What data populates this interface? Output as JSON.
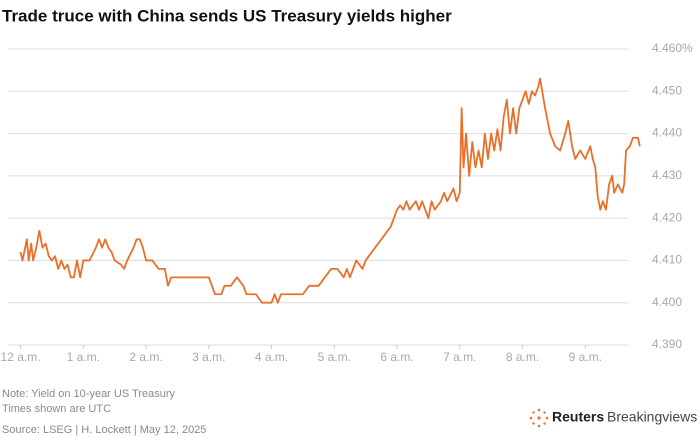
{
  "chart_data": {
    "type": "line",
    "title": "Trade truce with China sends US Treasury yields higher",
    "notes": [
      "Note: Yield on 10-year US Treasury",
      "Times shown are UTC",
      "Source: LSEG | H. Lockett | May 12, 2025"
    ],
    "brand": [
      "Reuters",
      "Breakingviews"
    ],
    "xlim": [
      -0.2,
      10.0
    ],
    "ylim": [
      4.39,
      4.46
    ],
    "xticks": [
      {
        "value": 0,
        "label": "12 a.m."
      },
      {
        "value": 1,
        "label": "1 a.m."
      },
      {
        "value": 2,
        "label": "2 a.m."
      },
      {
        "value": 3,
        "label": "3 a.m."
      },
      {
        "value": 4,
        "label": "4 a.m."
      },
      {
        "value": 5,
        "label": "5 a.m."
      },
      {
        "value": 6,
        "label": "6 a.m."
      },
      {
        "value": 7,
        "label": "7 a.m."
      },
      {
        "value": 8,
        "label": "8 a.m."
      },
      {
        "value": 9,
        "label": "9 a.m."
      }
    ],
    "yticks": [
      {
        "value": 4.39,
        "label": "4.390"
      },
      {
        "value": 4.4,
        "label": "4.400"
      },
      {
        "value": 4.41,
        "label": "4.410"
      },
      {
        "value": 4.42,
        "label": "4.420"
      },
      {
        "value": 4.43,
        "label": "4.430"
      },
      {
        "value": 4.44,
        "label": "4.440"
      },
      {
        "value": 4.45,
        "label": "4.450"
      },
      {
        "value": 4.46,
        "label": "4.460%"
      }
    ],
    "grid": true,
    "x": [
      0.0,
      0.03,
      0.06,
      0.1,
      0.13,
      0.17,
      0.2,
      0.25,
      0.3,
      0.35,
      0.4,
      0.45,
      0.5,
      0.55,
      0.6,
      0.65,
      0.7,
      0.75,
      0.8,
      0.85,
      0.9,
      0.95,
      1.0,
      1.1,
      1.2,
      1.25,
      1.3,
      1.35,
      1.4,
      1.45,
      1.5,
      1.6,
      1.65,
      1.7,
      1.8,
      1.85,
      1.9,
      1.95,
      2.0,
      2.1,
      2.2,
      2.3,
      2.35,
      2.4,
      2.7,
      3.0,
      3.05,
      3.1,
      3.2,
      3.25,
      3.35,
      3.45,
      3.55,
      3.6,
      3.75,
      3.85,
      4.0,
      4.05,
      4.1,
      4.15,
      4.5,
      4.6,
      4.75,
      4.85,
      4.95,
      5.05,
      5.15,
      5.2,
      5.25,
      5.3,
      5.35,
      5.45,
      5.5,
      5.6,
      5.7,
      5.8,
      5.9,
      5.95,
      6.0,
      6.05,
      6.1,
      6.15,
      6.2,
      6.3,
      6.35,
      6.4,
      6.45,
      6.5,
      6.55,
      6.6,
      6.7,
      6.75,
      6.8,
      6.9,
      6.95,
      7.0,
      7.03,
      7.06,
      7.1,
      7.15,
      7.2,
      7.25,
      7.3,
      7.35,
      7.4,
      7.45,
      7.5,
      7.55,
      7.6,
      7.65,
      7.7,
      7.75,
      7.8,
      7.85,
      7.9,
      7.95,
      8.0,
      8.05,
      8.1,
      8.15,
      8.2,
      8.25,
      8.28,
      8.36,
      8.44,
      8.52,
      8.6,
      8.68,
      8.73,
      8.79,
      8.84,
      8.92,
      9.0,
      9.08,
      9.12,
      9.16,
      9.2,
      9.24,
      9.28,
      9.33,
      9.38,
      9.43,
      9.46,
      9.52,
      9.59,
      9.62,
      9.65,
      9.71,
      9.76,
      9.84,
      9.87
    ],
    "series": [
      {
        "color": "#e8702a",
        "values": [
          4.412,
          4.41,
          4.412,
          4.415,
          4.41,
          4.414,
          4.41,
          4.413,
          4.417,
          4.413,
          4.414,
          4.411,
          4.41,
          4.411,
          4.408,
          4.41,
          4.408,
          4.409,
          4.406,
          4.406,
          4.41,
          4.406,
          4.41,
          4.41,
          4.413,
          4.415,
          4.413,
          4.415,
          4.413,
          4.412,
          4.41,
          4.409,
          4.408,
          4.41,
          4.413,
          4.415,
          4.415,
          4.413,
          4.41,
          4.41,
          4.408,
          4.408,
          4.404,
          4.406,
          4.406,
          4.406,
          4.404,
          4.402,
          4.402,
          4.404,
          4.404,
          4.406,
          4.404,
          4.402,
          4.402,
          4.4,
          4.4,
          4.402,
          4.4,
          4.402,
          4.402,
          4.404,
          4.404,
          4.406,
          4.408,
          4.408,
          4.406,
          4.408,
          4.406,
          4.408,
          4.41,
          4.408,
          4.41,
          4.412,
          4.414,
          4.416,
          4.418,
          4.42,
          4.422,
          4.423,
          4.422,
          4.424,
          4.422,
          4.424,
          4.422,
          4.424,
          4.422,
          4.42,
          4.424,
          4.422,
          4.424,
          4.426,
          4.424,
          4.427,
          4.424,
          4.426,
          4.446,
          4.432,
          4.44,
          4.43,
          4.438,
          4.432,
          4.436,
          4.432,
          4.44,
          4.434,
          4.44,
          4.436,
          4.441,
          4.436,
          4.444,
          4.448,
          4.44,
          4.446,
          4.44,
          4.446,
          4.448,
          4.45,
          4.447,
          4.45,
          4.449,
          4.451,
          4.453,
          4.446,
          4.44,
          4.437,
          4.436,
          4.44,
          4.443,
          4.437,
          4.434,
          4.436,
          4.434,
          4.437,
          4.434,
          4.432,
          4.425,
          4.422,
          4.424,
          4.422,
          4.428,
          4.43,
          4.426,
          4.428,
          4.426,
          4.428,
          4.436,
          4.437,
          4.439,
          4.439,
          4.437
        ]
      }
    ]
  }
}
